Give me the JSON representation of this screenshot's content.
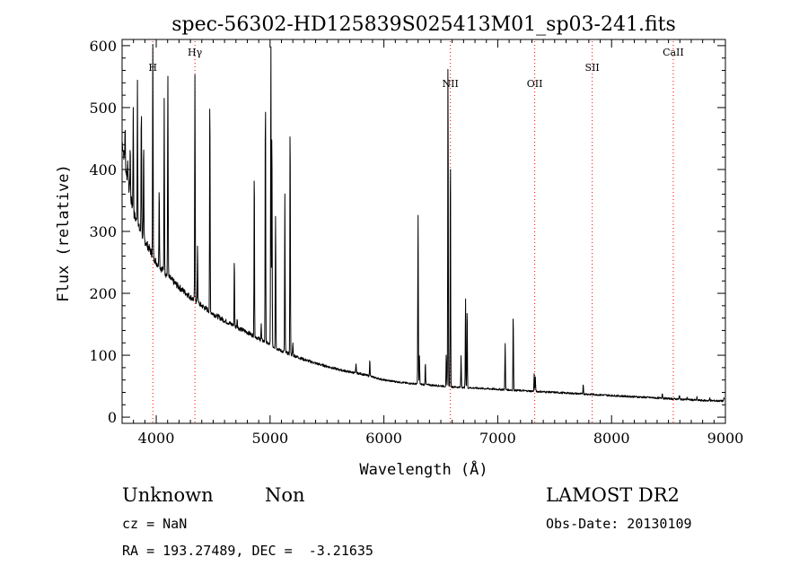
{
  "chart_data": {
    "type": "line",
    "title": "spec-56302-HD125839S025413M01_sp03-241.fits",
    "xlabel": "Wavelength (Å)",
    "ylabel": "Flux (relative)",
    "xlim": [
      3700,
      9000
    ],
    "ylim": [
      -10,
      610
    ],
    "x_ticks": [
      4000,
      5000,
      6000,
      7000,
      8000,
      9000
    ],
    "x_tick_labels": [
      "4000",
      "5000",
      "6000",
      "7000",
      "8000",
      "9000"
    ],
    "y_ticks": [
      0,
      100,
      200,
      300,
      400,
      500,
      600
    ],
    "y_tick_labels": [
      "0",
      "100",
      "200",
      "300",
      "400",
      "500",
      "600"
    ],
    "grid": false,
    "line_color": "#000000",
    "marker_color": "#ff0000",
    "continuum": [
      [
        3700,
        445
      ],
      [
        3750,
        380
      ],
      [
        3800,
        330
      ],
      [
        3850,
        305
      ],
      [
        3900,
        285
      ],
      [
        3950,
        268
      ],
      [
        4000,
        250
      ],
      [
        4100,
        228
      ],
      [
        4200,
        210
      ],
      [
        4300,
        194
      ],
      [
        4400,
        180
      ],
      [
        4500,
        167
      ],
      [
        4600,
        156
      ],
      [
        4700,
        146
      ],
      [
        4800,
        137
      ],
      [
        4900,
        127
      ],
      [
        5000,
        117
      ],
      [
        5100,
        107
      ],
      [
        5200,
        100
      ],
      [
        5300,
        93
      ],
      [
        5400,
        87
      ],
      [
        5500,
        82
      ],
      [
        5600,
        77
      ],
      [
        5700,
        73
      ],
      [
        5800,
        70
      ],
      [
        5900,
        65
      ],
      [
        6000,
        60
      ],
      [
        6200,
        55
      ],
      [
        6400,
        52
      ],
      [
        6600,
        49
      ],
      [
        6800,
        47
      ],
      [
        7000,
        45
      ],
      [
        7200,
        43
      ],
      [
        7400,
        41
      ],
      [
        7600,
        39
      ],
      [
        7800,
        37
      ],
      [
        8000,
        35
      ],
      [
        8200,
        33
      ],
      [
        8400,
        31
      ],
      [
        8600,
        29
      ],
      [
        8800,
        27
      ],
      [
        9000,
        26
      ]
    ],
    "emission_lines": [
      [
        3726,
        470
      ],
      [
        3750,
        420
      ],
      [
        3771,
        440
      ],
      [
        3798,
        500
      ],
      [
        3835,
        545
      ],
      [
        3869,
        510
      ],
      [
        3889,
        440
      ],
      [
        3970,
        600
      ],
      [
        4026,
        380
      ],
      [
        4070,
        520
      ],
      [
        4102,
        560
      ],
      [
        4340,
        550
      ],
      [
        4363,
        280
      ],
      [
        4471,
        530
      ],
      [
        4686,
        260
      ],
      [
        4711,
        160
      ],
      [
        4740,
        135
      ],
      [
        4861,
        410
      ],
      [
        4922,
        150
      ],
      [
        4959,
        530
      ],
      [
        5007,
        610
      ],
      [
        5016,
        480
      ],
      [
        5048,
        330
      ],
      [
        5130,
        360
      ],
      [
        5176,
        490
      ],
      [
        5200,
        120
      ],
      [
        5755,
        85
      ],
      [
        5876,
        95
      ],
      [
        6300,
        325
      ],
      [
        6312,
        100
      ],
      [
        6364,
        90
      ],
      [
        6548,
        100
      ],
      [
        6563,
        575
      ],
      [
        6584,
        440
      ],
      [
        6678,
        100
      ],
      [
        6717,
        195
      ],
      [
        6731,
        180
      ],
      [
        7065,
        120
      ],
      [
        7136,
        170
      ],
      [
        7320,
        70
      ],
      [
        7330,
        65
      ],
      [
        7751,
        55
      ],
      [
        8446,
        40
      ],
      [
        8596,
        35
      ],
      [
        8665,
        33
      ],
      [
        8750,
        32
      ],
      [
        8863,
        31
      ],
      [
        8988,
        30
      ]
    ],
    "reference_lines": [
      {
        "label": "H",
        "x": 3970
      },
      {
        "label": "Hγ",
        "x": 4340
      },
      {
        "label": "NII",
        "x": 6584
      },
      {
        "label": "OII",
        "x": 7325
      },
      {
        "label": "SII",
        "x": 7830
      },
      {
        "label": "CaII",
        "x": 8542
      }
    ]
  },
  "info": {
    "class": "Unknown",
    "subclass": "Non",
    "survey": "LAMOST DR2",
    "cz": "cz = NaN",
    "obs_date": "Obs-Date: 20130109",
    "coords": "RA = 193.27489, DEC =  -3.21635"
  }
}
